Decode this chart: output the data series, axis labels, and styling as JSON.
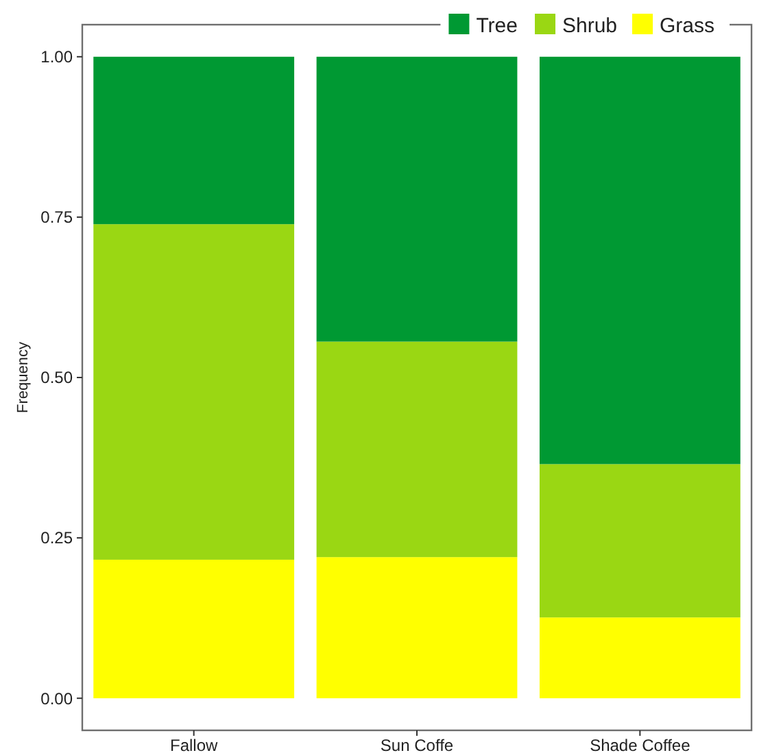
{
  "chart_data": {
    "type": "bar",
    "stacked": true,
    "ylabel": "Frequency",
    "categories": [
      "Fallow",
      "Sun Coffe",
      "Shade Coffee"
    ],
    "series": [
      {
        "name": "Grass",
        "color": "#ffff00",
        "values": [
          0.216,
          0.22,
          0.126
        ]
      },
      {
        "name": "Shrub",
        "color": "#9ad713",
        "values": [
          0.523,
          0.336,
          0.239
        ]
      },
      {
        "name": "Tree",
        "color": "#009933",
        "values": [
          0.261,
          0.444,
          0.635
        ]
      }
    ],
    "ylim": [
      -0.05,
      1.05
    ],
    "yticks": [
      {
        "value": 0,
        "label": "0.00"
      },
      {
        "value": 0.25,
        "label": "0.25"
      },
      {
        "value": 0.5,
        "label": "0.50"
      },
      {
        "value": 0.75,
        "label": "0.75"
      },
      {
        "value": 1,
        "label": "1.00"
      }
    ],
    "grid": false,
    "legend": "top right"
  }
}
